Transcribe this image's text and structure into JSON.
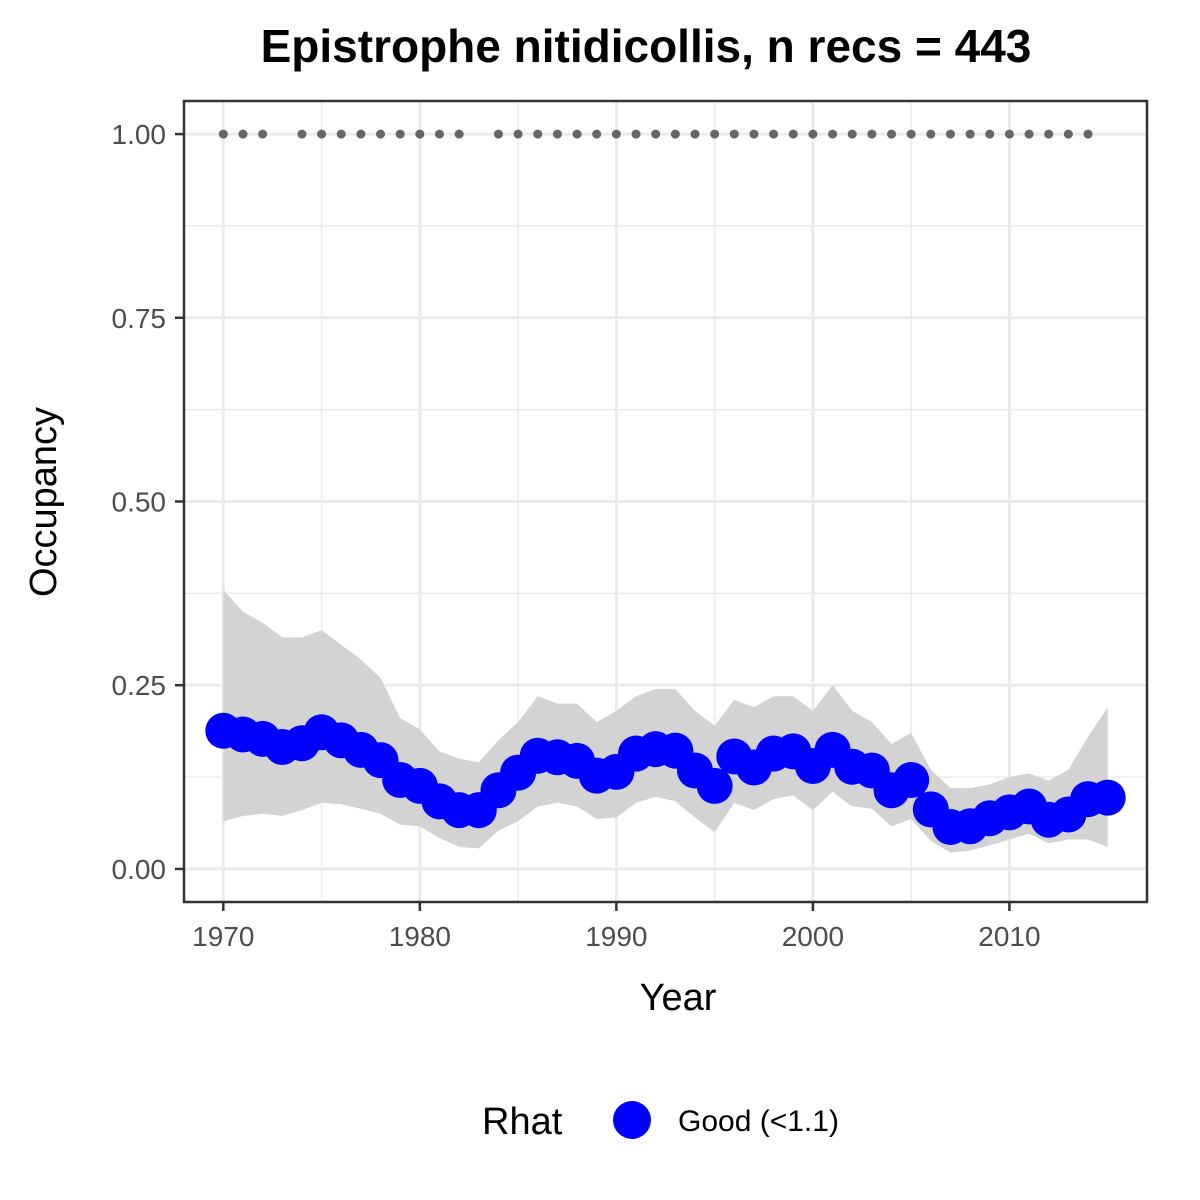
{
  "chart_data": {
    "type": "line",
    "title": "Epistrophe nitidicollis, n recs = 443",
    "xlabel": "Year",
    "ylabel": "Occupancy",
    "xlim": [
      1968,
      2017
    ],
    "ylim": [
      -0.045,
      1.045
    ],
    "x_ticks": [
      1970,
      1980,
      1990,
      2000,
      2010
    ],
    "x_tick_labels": [
      "1970",
      "1980",
      "1990",
      "2000",
      "2010"
    ],
    "y_ticks": [
      0,
      0.25,
      0.5,
      0.75,
      1.0
    ],
    "y_tick_labels": [
      "0.00",
      "0.25",
      "0.50",
      "0.75",
      "1.00"
    ],
    "grid": true,
    "legend": {
      "title": "Rhat",
      "position": "bottom",
      "entries": [
        {
          "label": "Good (<1.1)",
          "color": "#0000ff"
        }
      ]
    },
    "colors": {
      "series": "#0000ff",
      "ribbon": "#d3d3d3",
      "records": "#666666"
    },
    "series": [
      {
        "x": [
          1970,
          1971,
          1972,
          1973,
          1974,
          1975,
          1976,
          1977,
          1978,
          1979,
          1980,
          1981,
          1982,
          1983,
          1984,
          1985,
          1986,
          1987,
          1988,
          1989,
          1990,
          1991,
          1992,
          1993,
          1994,
          1995,
          1996,
          1997,
          1998,
          1999,
          2000,
          2001,
          2002,
          2003,
          2004,
          2005,
          2006,
          2007,
          2008,
          2009,
          2010,
          2011,
          2012,
          2013,
          2014,
          2015
        ],
        "y": [
          0.188,
          0.183,
          0.177,
          0.166,
          0.171,
          0.186,
          0.175,
          0.162,
          0.148,
          0.121,
          0.113,
          0.092,
          0.08,
          0.08,
          0.107,
          0.131,
          0.154,
          0.152,
          0.147,
          0.127,
          0.132,
          0.157,
          0.163,
          0.161,
          0.134,
          0.113,
          0.153,
          0.138,
          0.157,
          0.16,
          0.14,
          0.162,
          0.139,
          0.134,
          0.107,
          0.121,
          0.081,
          0.057,
          0.058,
          0.069,
          0.077,
          0.085,
          0.067,
          0.074,
          0.095,
          0.097
        ],
        "lower": [
          0.065,
          0.072,
          0.075,
          0.072,
          0.08,
          0.09,
          0.088,
          0.082,
          0.075,
          0.06,
          0.058,
          0.042,
          0.03,
          0.028,
          0.052,
          0.065,
          0.085,
          0.09,
          0.085,
          0.068,
          0.07,
          0.09,
          0.098,
          0.092,
          0.07,
          0.05,
          0.09,
          0.08,
          0.095,
          0.1,
          0.08,
          0.105,
          0.085,
          0.082,
          0.058,
          0.068,
          0.038,
          0.022,
          0.025,
          0.032,
          0.04,
          0.048,
          0.035,
          0.04,
          0.04,
          0.03
        ],
        "upper": [
          0.38,
          0.35,
          0.335,
          0.315,
          0.315,
          0.325,
          0.305,
          0.285,
          0.26,
          0.205,
          0.19,
          0.16,
          0.15,
          0.145,
          0.175,
          0.2,
          0.235,
          0.225,
          0.225,
          0.2,
          0.215,
          0.235,
          0.245,
          0.245,
          0.215,
          0.195,
          0.23,
          0.22,
          0.235,
          0.235,
          0.215,
          0.25,
          0.215,
          0.2,
          0.17,
          0.185,
          0.135,
          0.11,
          0.11,
          0.115,
          0.125,
          0.13,
          0.12,
          0.135,
          0.18,
          0.22
        ]
      }
    ],
    "records_y": 1.0,
    "record_years": [
      1970,
      1971,
      1972,
      1974,
      1975,
      1976,
      1977,
      1978,
      1979,
      1980,
      1981,
      1982,
      1984,
      1985,
      1986,
      1987,
      1988,
      1989,
      1990,
      1991,
      1992,
      1993,
      1994,
      1995,
      1996,
      1997,
      1998,
      1999,
      2000,
      2001,
      2002,
      2003,
      2004,
      2005,
      2006,
      2007,
      2008,
      2009,
      2010,
      2011,
      2012,
      2013,
      2014
    ]
  }
}
